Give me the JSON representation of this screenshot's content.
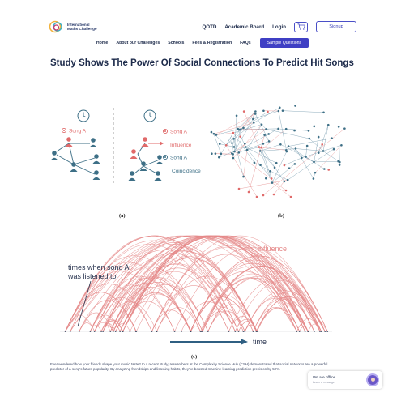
{
  "header": {
    "logo_line1": "International",
    "logo_line2": "Maths Challenge",
    "nav": [
      "QOTD",
      "Academic Board",
      "Login"
    ],
    "signup_label": "Signup"
  },
  "subnav": {
    "items": [
      "Home",
      "About our Challenges",
      "Schools",
      "Fees & Registration",
      "FAQs"
    ],
    "sample_label": "Sample Questions"
  },
  "article": {
    "title": "Study Shows The Power Of Social Connections To Predict Hit Songs",
    "body": "Ever wondered how your friends shape your music taste? In a recent study, researchers at the Complexity Science Hub (CSH) demonstrated that social networks are a powerful predictor of a song's future popularity. By analyzing friendships and listening habits, they've boosted machine learning prediction precision by 50%."
  },
  "figure": {
    "panel_a_label": "(a)",
    "panel_b_label": "(b)",
    "panel_c_label": "(c)",
    "song_a_left": "Song  A",
    "song_a_right_1": "Song A",
    "influence_label": "Influence",
    "song_a_right_2": "Song A",
    "coincidence_label": "Coincidence",
    "influence_c": "influence",
    "times_label_1": "times when song A",
    "times_label_2": "was listened to",
    "time_label": "time"
  },
  "chat": {
    "status": "We are offline...",
    "sub": "Leave a message"
  },
  "colors": {
    "accent": "#3f3fc4",
    "node_red": "#e06a6a",
    "node_teal": "#3d6f86",
    "arc_red": "#e58a8a"
  }
}
